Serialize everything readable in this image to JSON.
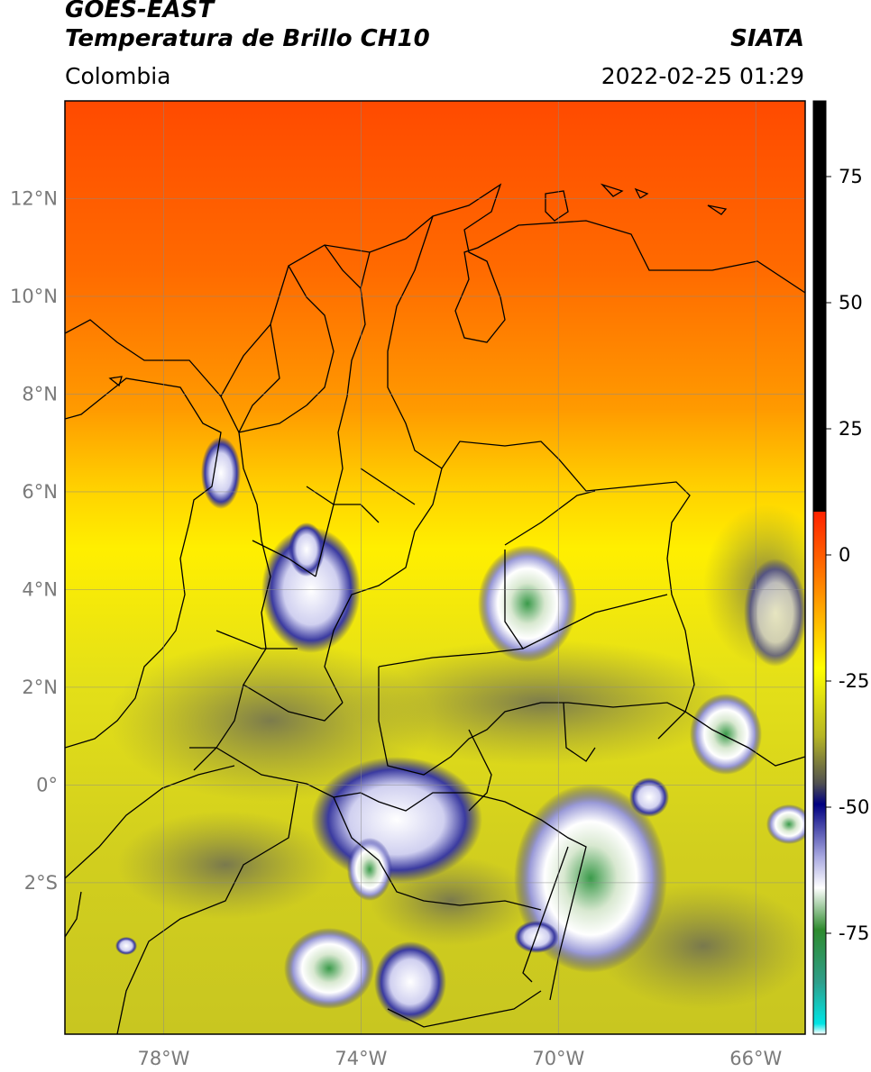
{
  "header": {
    "satellite": "GOES-EAST",
    "product": "Temperatura de Brillo CH10",
    "region": "Colombia",
    "agency": "SIATA",
    "datetime": "2022-02-25 01:29"
  },
  "map": {
    "lat_ticks": [
      {
        "value": 12,
        "label": "12°N"
      },
      {
        "value": 10,
        "label": "10°N"
      },
      {
        "value": 8,
        "label": "8°N"
      },
      {
        "value": 6,
        "label": "6°N"
      },
      {
        "value": 4,
        "label": "4°N"
      },
      {
        "value": 2,
        "label": "2°N"
      },
      {
        "value": 0,
        "label": "0°"
      },
      {
        "value": -2,
        "label": "2°S"
      }
    ],
    "lon_ticks": [
      {
        "value": -78,
        "label": "78°W"
      },
      {
        "value": -74,
        "label": "74°W"
      },
      {
        "value": -70,
        "label": "70°W"
      },
      {
        "value": -66,
        "label": "66°W"
      }
    ],
    "lat_range": [
      -5.1,
      14.0
    ],
    "lon_range": [
      -80.0,
      -65.0
    ],
    "grid": true
  },
  "colorbar": {
    "range": [
      -95,
      90
    ],
    "ticks": [
      {
        "value": 75,
        "label": "75"
      },
      {
        "value": 50,
        "label": "50"
      },
      {
        "value": 25,
        "label": "25"
      },
      {
        "value": 0,
        "label": "0"
      },
      {
        "value": -25,
        "label": "-25"
      },
      {
        "value": -50,
        "label": "-50"
      },
      {
        "value": -75,
        "label": "-75"
      }
    ],
    "colors": {
      "black": "#000000",
      "red": "#ff1a00",
      "orange": "#ff8c00",
      "yellow": "#ffff00",
      "olive": "#c8c820",
      "dark_olive": "#6e6e3a",
      "navy": "#000080",
      "lavender": "#b0b0e6",
      "white": "#ffffff",
      "green": "#2e8b2e",
      "cyan": "#00e5e5"
    }
  }
}
